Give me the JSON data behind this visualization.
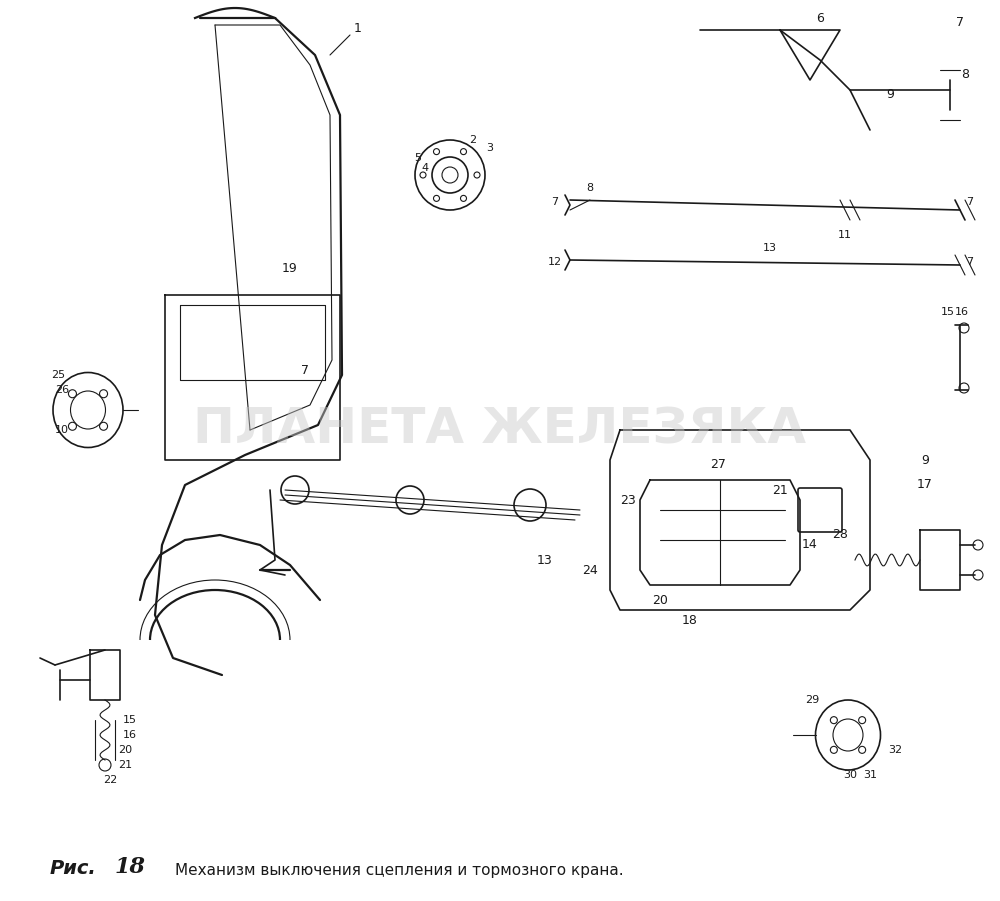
{
  "title_caption": "Рис.",
  "title_number": "18",
  "title_text": "Механизм выключения сцепления и тормозного крана.",
  "bg_color": "#ffffff",
  "line_color": "#1a1a1a",
  "watermark_text": "ПЛАНЕТА ЖЕЛЕЗЯКА",
  "watermark_color": "#c8c8c8",
  "watermark_alpha": 0.45,
  "fig_width": 10.0,
  "fig_height": 9.01,
  "dpi": 100
}
